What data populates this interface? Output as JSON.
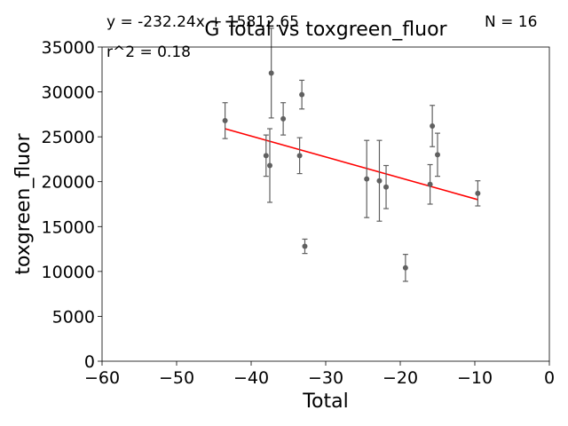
{
  "chart_data": {
    "type": "scatter",
    "title": "G Total vs toxgreen_fluor",
    "xlabel": "Total",
    "ylabel": "toxgreen_fluor",
    "xlim": [
      -60,
      0
    ],
    "ylim": [
      0,
      35000
    ],
    "xticks": [
      -60,
      -50,
      -40,
      -30,
      -20,
      -10,
      0
    ],
    "yticks": [
      0,
      5000,
      10000,
      15000,
      20000,
      25000,
      30000,
      35000
    ],
    "grid": false,
    "annotations": {
      "equation": "y = -232.24x + 15812.65",
      "r2": "r^2 = 0.18",
      "n": "N = 16"
    },
    "colors": {
      "points": "#606060",
      "fit": "#ff0000",
      "errorbars": "#606060"
    },
    "points": [
      {
        "x": -43.5,
        "y": 26800,
        "err": 2000
      },
      {
        "x": -38.0,
        "y": 22900,
        "err": 2300
      },
      {
        "x": -37.5,
        "y": 21800,
        "err": 4100
      },
      {
        "x": -37.3,
        "y": 32100,
        "err": 5000
      },
      {
        "x": -35.7,
        "y": 27000,
        "err": 1800
      },
      {
        "x": -33.5,
        "y": 22900,
        "err": 2000
      },
      {
        "x": -33.2,
        "y": 29700,
        "err": 1600
      },
      {
        "x": -32.8,
        "y": 12800,
        "err": 800
      },
      {
        "x": -24.5,
        "y": 20300,
        "err": 4300
      },
      {
        "x": -22.8,
        "y": 20100,
        "err": 4500
      },
      {
        "x": -21.9,
        "y": 19400,
        "err": 2400
      },
      {
        "x": -19.3,
        "y": 10400,
        "err": 1500
      },
      {
        "x": -16.0,
        "y": 19700,
        "err": 2200
      },
      {
        "x": -15.7,
        "y": 26200,
        "err": 2300
      },
      {
        "x": -15.0,
        "y": 23000,
        "err": 2400
      },
      {
        "x": -9.6,
        "y": 18700,
        "err": 1400
      }
    ],
    "fit": {
      "x": [
        -43.5,
        -9.6
      ],
      "y": [
        25900,
        18000
      ]
    }
  }
}
